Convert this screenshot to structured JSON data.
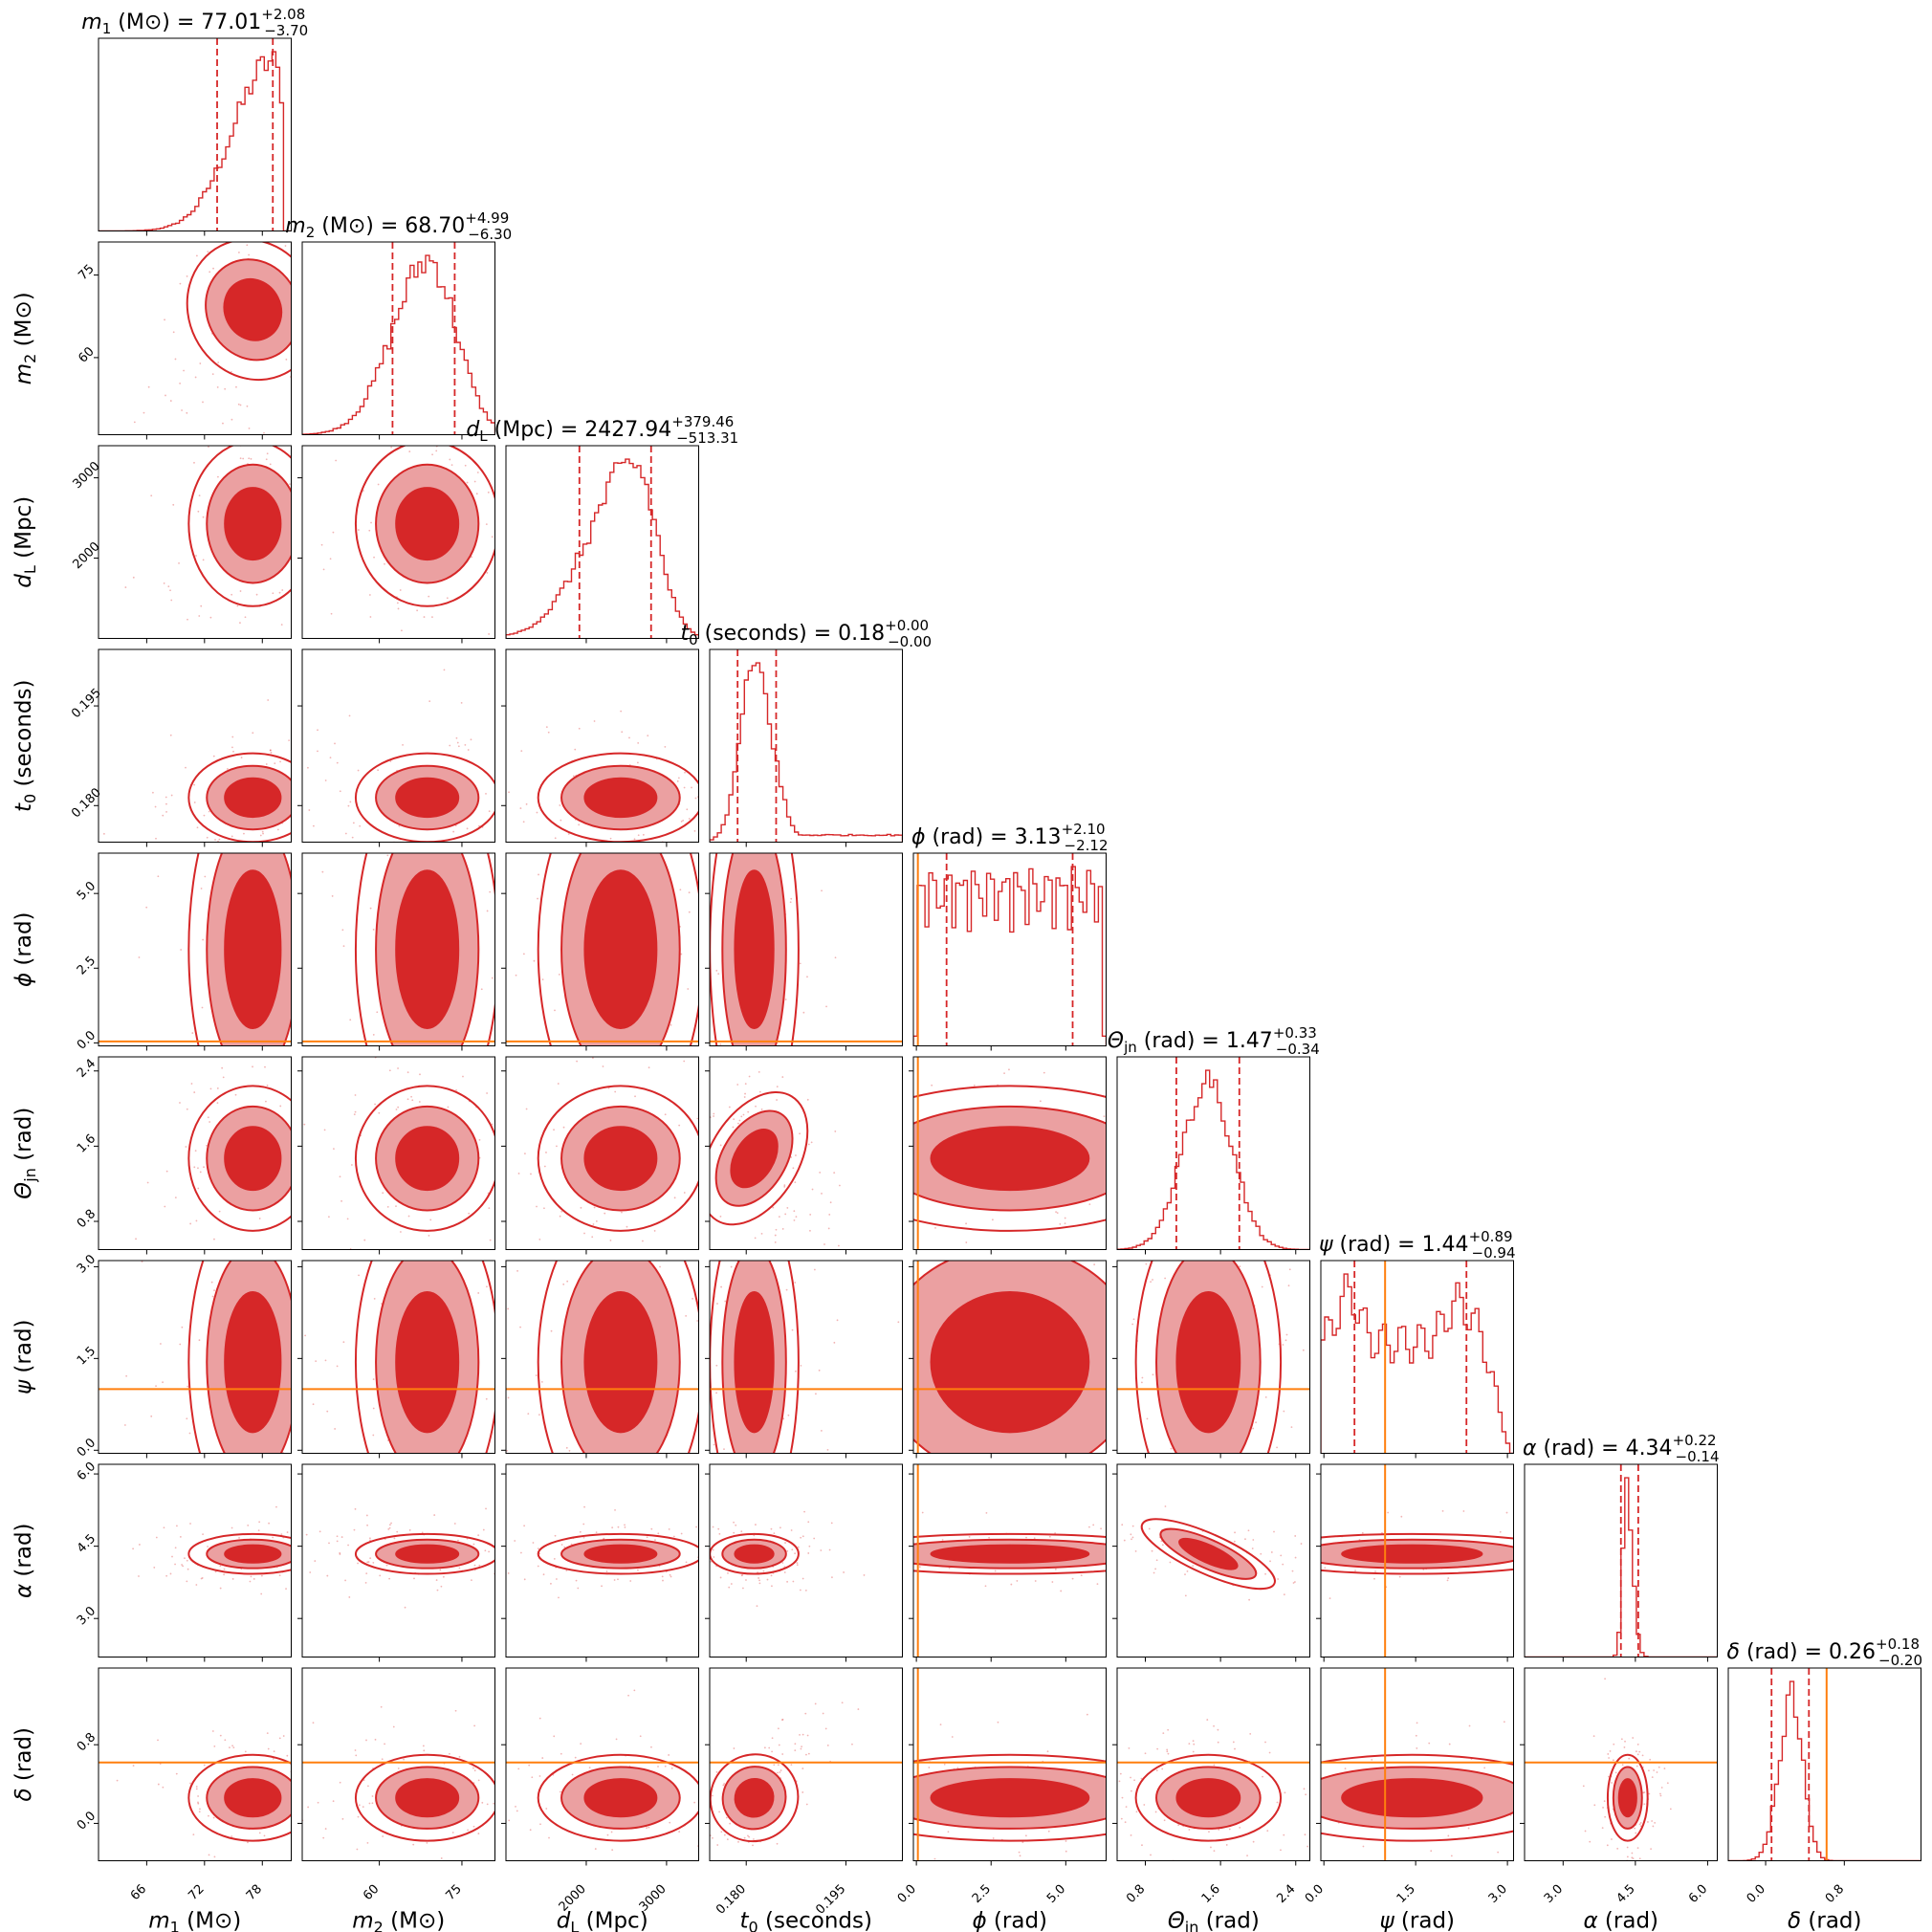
{
  "chart_data": {
    "type": "corner",
    "colors": {
      "posterior": "#d62728",
      "posterior_light": "#eba0a1",
      "truth": "#ff7f0e",
      "frame": "#000000"
    },
    "parameters": [
      {
        "key": "m1",
        "label_math": "m",
        "label_sub": "1",
        "label_unit": " (M⊙)",
        "title_value": "77.01",
        "title_plus": "+2.08",
        "title_minus": "−3.70",
        "range": [
          61,
          81
        ],
        "ticks": [
          66,
          72,
          78
        ],
        "tick_labels": [
          "66",
          "72",
          "78"
        ],
        "truth": null,
        "quantiles": [
          73.31,
          77.01,
          79.09
        ],
        "peak": 79.0,
        "sigma_lo": 4.0,
        "sigma_hi": 1.6,
        "skew_left": true
      },
      {
        "key": "m2",
        "label_math": "m",
        "label_sub": "2",
        "label_unit": " (M⊙)",
        "title_value": "68.70",
        "title_plus": "+4.99",
        "title_minus": "−6.30",
        "range": [
          46,
          81
        ],
        "ticks": [
          60,
          75
        ],
        "tick_labels": [
          "60",
          "75"
        ],
        "truth": null,
        "quantiles": [
          62.4,
          68.7,
          73.69
        ],
        "peak": 69.0,
        "sigma_lo": 6.5,
        "sigma_hi": 5.0,
        "skew_left": false
      },
      {
        "key": "dL",
        "label_math": "d",
        "label_sub": "L",
        "label_unit": " (Mpc)",
        "title_value": "2427.94",
        "title_plus": "+379.46",
        "title_minus": "−513.31",
        "range": [
          1000,
          3400
        ],
        "ticks": [
          2000,
          3000
        ],
        "tick_labels": [
          "2000",
          "3000"
        ],
        "truth": null,
        "quantiles": [
          1914.63,
          2427.94,
          2807.4
        ],
        "peak": 2600,
        "sigma_lo": 560,
        "sigma_hi": 280,
        "skew_left": false
      },
      {
        "key": "t0",
        "label_math": "t",
        "label_sub": "0",
        "label_unit": " (seconds)",
        "title_value": "0.18",
        "title_plus": "+0.00",
        "title_minus": "−0.00",
        "range": [
          0.1745,
          0.2035
        ],
        "ticks": [
          0.18,
          0.195
        ],
        "tick_labels": [
          "0.180",
          "0.195"
        ],
        "truth": null,
        "quantiles": [
          0.1787,
          0.1812,
          0.1845
        ],
        "peak": 0.1813,
        "sigma_lo": 0.0022,
        "sigma_hi": 0.0026,
        "skew_left": false
      },
      {
        "key": "phi",
        "label_math": "ϕ",
        "label_sub": "",
        "label_unit": " (rad)",
        "title_value": "3.13",
        "title_plus": "+2.10",
        "title_minus": "−2.12",
        "range": [
          -0.1,
          6.35
        ],
        "ticks": [
          0,
          2.5,
          5.0
        ],
        "tick_labels": [
          "0.0",
          "2.5",
          "5.0"
        ],
        "truth": 0.05,
        "quantiles": [
          1.01,
          3.13,
          5.23
        ],
        "peak": 3.14,
        "sigma_lo": 0,
        "sigma_hi": 0,
        "skew_left": false
      },
      {
        "key": "theta_jn",
        "label_math": "Θ",
        "label_sub": "jn",
        "label_unit": " (rad)",
        "title_value": "1.47",
        "title_plus": "+0.33",
        "title_minus": "−0.34",
        "range": [
          0.5,
          2.55
        ],
        "ticks": [
          0.8,
          1.6,
          2.4
        ],
        "tick_labels": [
          "0.8",
          "1.6",
          "2.4"
        ],
        "truth": null,
        "quantiles": [
          1.13,
          1.47,
          1.8
        ],
        "peak": 1.47,
        "sigma_lo": 0.27,
        "sigma_hi": 0.26,
        "skew_left": false
      },
      {
        "key": "psi",
        "label_math": "ψ",
        "label_sub": "",
        "label_unit": " (rad)",
        "title_value": "1.44",
        "title_plus": "+0.89",
        "title_minus": "−0.94",
        "range": [
          -0.05,
          3.1
        ],
        "ticks": [
          0,
          1.5,
          3.0
        ],
        "tick_labels": [
          "0.0",
          "1.5",
          "3.0"
        ],
        "truth": 1.0,
        "quantiles": [
          0.5,
          1.44,
          2.33
        ],
        "peak": 1.44,
        "sigma_lo": 0,
        "sigma_hi": 0,
        "skew_left": false
      },
      {
        "key": "alpha",
        "label_math": "α",
        "label_sub": "",
        "label_unit": " (rad)",
        "title_value": "4.34",
        "title_plus": "+0.22",
        "title_minus": "−0.14",
        "range": [
          2.2,
          6.2
        ],
        "ticks": [
          3.0,
          4.5,
          6.0
        ],
        "tick_labels": [
          "3.0",
          "4.5",
          "6.0"
        ],
        "truth": null,
        "quantiles": [
          4.2,
          4.34,
          4.56
        ],
        "peak": 4.32,
        "sigma_lo": 0.08,
        "sigma_hi": 0.12,
        "skew_left": false
      },
      {
        "key": "delta",
        "label_math": "δ",
        "label_sub": "",
        "label_unit": " (rad)",
        "title_value": "0.26",
        "title_plus": "+0.18",
        "title_minus": "−0.20",
        "range": [
          -0.38,
          1.58
        ],
        "ticks": [
          0,
          0.8
        ],
        "tick_labels": [
          "0.0",
          "0.8"
        ],
        "truth": 0.62,
        "quantiles": [
          0.06,
          0.26,
          0.44
        ],
        "peak": 0.27,
        "sigma_lo": 0.13,
        "sigma_hi": 0.11,
        "skew_left": false
      }
    ],
    "contour_levels": [
      "1-sigma (filled dark)",
      "2-sigma (filled light)",
      "3-sigma (outline)"
    ],
    "grid": false,
    "legend": "none"
  }
}
